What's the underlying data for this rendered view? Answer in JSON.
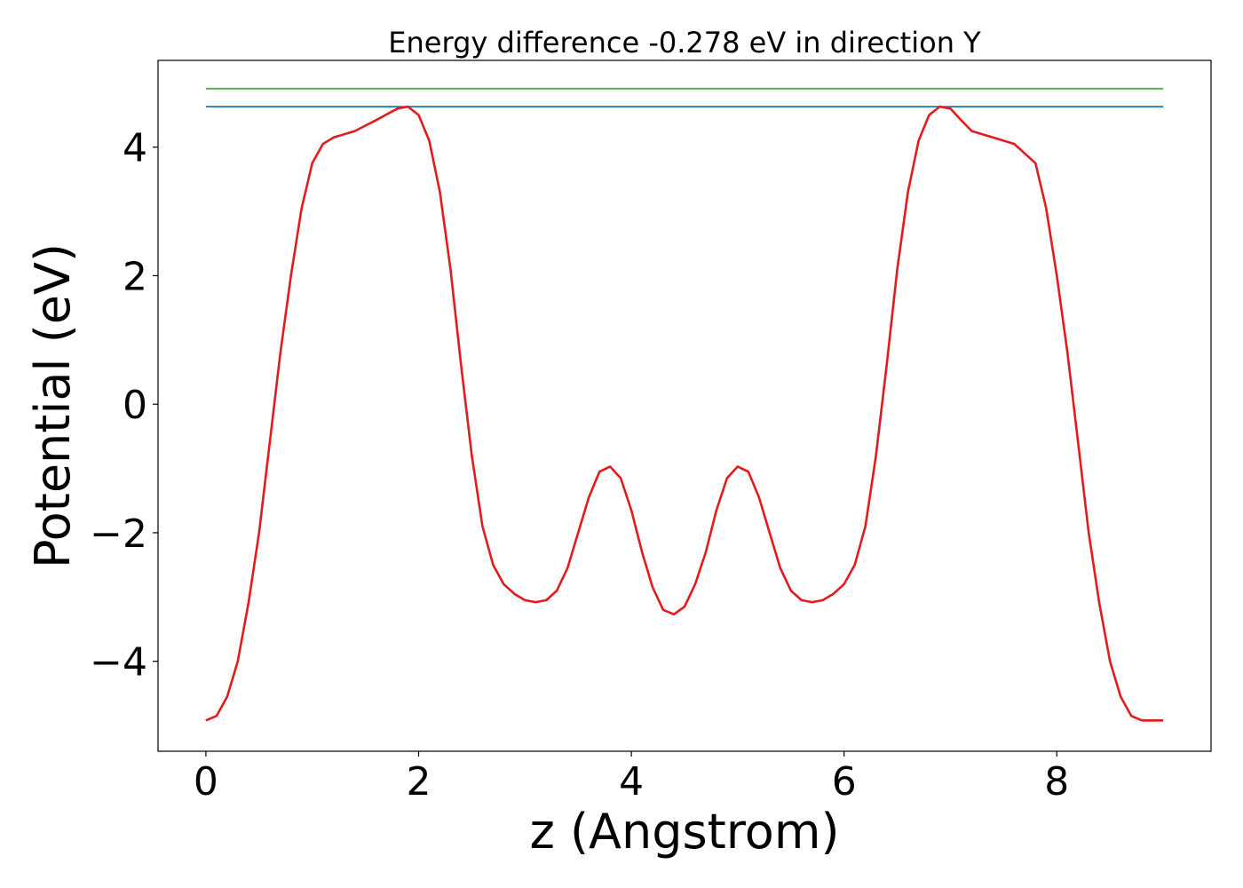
{
  "chart_data": {
    "type": "line",
    "title": "Energy difference -0.278 eV in direction Y",
    "xlabel": "z (Angstrom)",
    "ylabel": "Potential (eV)",
    "xlim": [
      -0.45,
      9.45
    ],
    "ylim": [
      -5.4,
      5.35
    ],
    "grid": false,
    "xticks": [
      0,
      2,
      4,
      6,
      8
    ],
    "xtick_labels": [
      "0",
      "2",
      "4",
      "6",
      "8"
    ],
    "yticks": [
      -4,
      -2,
      0,
      2,
      4
    ],
    "ytick_labels": [
      "−4",
      "−2",
      "0",
      "2",
      "4"
    ],
    "series": [
      {
        "color": "#e41a1c",
        "x": [
          0,
          0.1,
          0.2,
          0.3,
          0.4,
          0.5,
          0.6,
          0.7,
          0.8,
          0.9,
          1.0,
          1.1,
          1.2,
          1.4,
          1.6,
          1.8,
          1.9,
          2.0,
          2.1,
          2.2,
          2.3,
          2.4,
          2.5,
          2.6,
          2.7,
          2.8,
          2.9,
          3.0,
          3.1,
          3.2,
          3.3,
          3.4,
          3.5,
          3.6,
          3.7,
          3.8,
          3.9,
          4.0,
          4.1,
          4.2,
          4.3,
          4.4,
          4.5,
          4.6,
          4.7,
          4.8,
          4.9,
          5.0,
          5.1,
          5.2,
          5.3,
          5.4,
          5.5,
          5.6,
          5.7,
          5.8,
          5.9,
          6.0,
          6.1,
          6.2,
          6.3,
          6.4,
          6.5,
          6.6,
          6.7,
          6.8,
          6.9,
          7.0,
          7.1,
          7.2,
          7.4,
          7.6,
          7.8,
          7.9,
          8.0,
          8.1,
          8.2,
          8.3,
          8.4,
          8.5,
          8.6,
          8.7,
          8.8,
          8.9,
          9.0
        ],
        "y": [
          -4.92,
          -4.85,
          -4.55,
          -4.0,
          -3.1,
          -2.0,
          -0.6,
          0.8,
          2.0,
          3.05,
          3.75,
          4.05,
          4.15,
          4.25,
          4.42,
          4.6,
          4.63,
          4.5,
          4.1,
          3.3,
          2.1,
          0.6,
          -0.8,
          -1.9,
          -2.5,
          -2.8,
          -2.95,
          -3.05,
          -3.08,
          -3.05,
          -2.9,
          -2.55,
          -2.0,
          -1.45,
          -1.05,
          -0.97,
          -1.15,
          -1.65,
          -2.3,
          -2.85,
          -3.2,
          -3.27,
          -3.15,
          -2.8,
          -2.3,
          -1.65,
          -1.15,
          -0.97,
          -1.05,
          -1.45,
          -2.0,
          -2.55,
          -2.9,
          -3.05,
          -3.08,
          -3.05,
          -2.95,
          -2.8,
          -2.5,
          -1.9,
          -0.8,
          0.6,
          2.1,
          3.3,
          4.1,
          4.5,
          4.63,
          4.6,
          4.42,
          4.25,
          4.15,
          4.05,
          3.75,
          3.05,
          2.0,
          0.8,
          -0.6,
          -2.0,
          -3.1,
          -4.0,
          -4.55,
          -4.85,
          -4.92,
          -4.92,
          -4.92
        ]
      },
      {
        "color": "#1f77b4",
        "x": [
          0,
          9
        ],
        "y": [
          4.63,
          4.63
        ]
      },
      {
        "color": "#4daf4a",
        "x": [
          0,
          9
        ],
        "y": [
          4.91,
          4.91
        ]
      }
    ]
  }
}
